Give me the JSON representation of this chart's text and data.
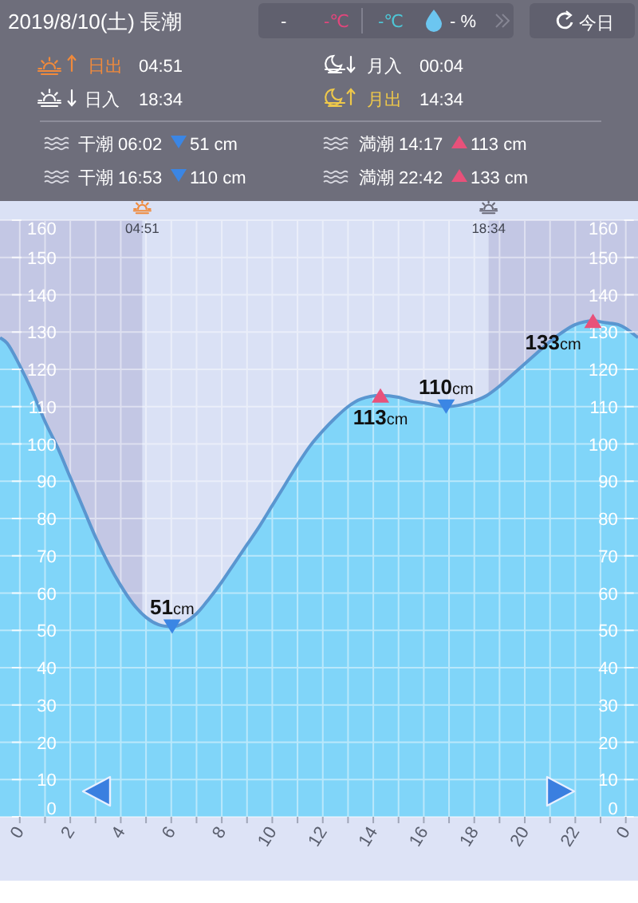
{
  "chart_data": [
    {
      "type": "other",
      "title": "2019/8/10(土) 長潮",
      "annotations": [
        "-",
        "-℃",
        "-℃",
        "- %",
        "今日",
        "日出",
        "04:51",
        "月入",
        "00:04",
        "日入",
        "18:34",
        "月出",
        "14:34",
        "干潮 06:02",
        "51 cm",
        "満潮 14:17",
        "113 cm",
        "干潮 16:53",
        "110 cm",
        "満潮 22:42",
        "133 cm"
      ]
    },
    {
      "type": "area",
      "x": [
        "2019-08-09T23:13",
        "2019-08-09T23:30",
        "2019-08-10T00:00",
        "2019-08-10T00:30",
        "2019-08-10T01:00",
        "2019-08-10T01:30",
        "2019-08-10T02:00",
        "2019-08-10T02:30",
        "2019-08-10T03:00",
        "2019-08-10T03:30",
        "2019-08-10T04:00",
        "2019-08-10T04:30",
        "2019-08-10T05:00",
        "2019-08-10T05:30",
        "2019-08-10T06:02",
        "2019-08-10T06:30",
        "2019-08-10T07:00",
        "2019-08-10T07:30",
        "2019-08-10T08:00",
        "2019-08-10T08:30",
        "2019-08-10T09:00",
        "2019-08-10T09:30",
        "2019-08-10T10:00",
        "2019-08-10T10:30",
        "2019-08-10T11:00",
        "2019-08-10T11:30",
        "2019-08-10T12:00",
        "2019-08-10T12:30",
        "2019-08-10T13:00",
        "2019-08-10T13:30",
        "2019-08-10T14:17",
        "2019-08-10T15:00",
        "2019-08-10T15:30",
        "2019-08-10T16:00",
        "2019-08-10T16:53",
        "2019-08-10T17:30",
        "2019-08-10T18:00",
        "2019-08-10T18:30",
        "2019-08-10T19:00",
        "2019-08-10T19:30",
        "2019-08-10T20:00",
        "2019-08-10T20:30",
        "2019-08-10T21:00",
        "2019-08-10T21:30",
        "2019-08-10T22:00",
        "2019-08-10T22:42",
        "2019-08-10T23:12",
        "2019-08-10T23:42",
        "2019-08-11T00:00",
        "2019-08-11T00:29"
      ],
      "series": [
        {
          "type": "area",
          "color": "#80d5f9",
          "values": [
            128.5,
            127,
            121,
            114,
            106,
            99,
            91,
            83,
            75,
            68,
            62,
            57,
            53.5,
            51.5,
            51,
            52,
            54.5,
            58.5,
            63,
            68,
            73,
            78,
            83.5,
            89,
            94.5,
            99.5,
            103.5,
            107,
            110,
            112,
            113,
            112.5,
            111.5,
            111,
            110,
            110.5,
            111.5,
            113,
            115.5,
            118.5,
            121.5,
            124.5,
            127.5,
            130,
            132,
            133,
            132.5,
            132,
            131,
            128.5
          ]
        },
        {
          "type": "scatter",
          "marker": "triangle",
          "color": "#3b86e4",
          "x": [
            "2019-08-10T06:02",
            "2019-08-10T16:53"
          ],
          "values": [
            51,
            110
          ],
          "value_labels": [
            "51cm",
            "110cm"
          ]
        },
        {
          "type": "scatter",
          "marker": "triangle",
          "color": "#e8517a",
          "x": [
            "2019-08-10T14:17",
            "2019-08-10T22:42"
          ],
          "values": [
            113,
            133
          ],
          "value_labels": [
            "113cm",
            "133cm"
          ]
        }
      ],
      "xlim": [
        "2019-08-09T23:13",
        "2019-08-11T00:29"
      ],
      "xticks": [
        {
          "value": "2019-08-10T00:00",
          "label": "0"
        },
        {
          "value": "2019-08-10T01:00",
          "label": null
        },
        {
          "value": "2019-08-10T02:00",
          "label": "2"
        },
        {
          "value": "2019-08-10T03:00",
          "label": null
        },
        {
          "value": "2019-08-10T04:00",
          "label": "4"
        },
        {
          "value": "2019-08-10T05:00",
          "label": null
        },
        {
          "value": "2019-08-10T06:00",
          "label": "6"
        },
        {
          "value": "2019-08-10T07:00",
          "label": null
        },
        {
          "value": "2019-08-10T08:00",
          "label": "8"
        },
        {
          "value": "2019-08-10T09:00",
          "label": null
        },
        {
          "value": "2019-08-10T10:00",
          "label": "10"
        },
        {
          "value": "2019-08-10T11:00",
          "label": null
        },
        {
          "value": "2019-08-10T12:00",
          "label": "12"
        },
        {
          "value": "2019-08-10T13:00",
          "label": null
        },
        {
          "value": "2019-08-10T14:00",
          "label": "14"
        },
        {
          "value": "2019-08-10T15:00",
          "label": null
        },
        {
          "value": "2019-08-10T16:00",
          "label": "16"
        },
        {
          "value": "2019-08-10T17:00",
          "label": null
        },
        {
          "value": "2019-08-10T18:00",
          "label": "18"
        },
        {
          "value": "2019-08-10T19:00",
          "label": null
        },
        {
          "value": "2019-08-10T20:00",
          "label": "20"
        },
        {
          "value": "2019-08-10T21:00",
          "label": null
        },
        {
          "value": "2019-08-10T22:00",
          "label": "22"
        },
        {
          "value": "2019-08-10T23:00",
          "label": null
        },
        {
          "value": "2019-08-11T00:00",
          "label": "0"
        }
      ],
      "ylim": [
        0,
        160
      ],
      "yticks": [
        0,
        10,
        20,
        30,
        40,
        50,
        60,
        70,
        80,
        90,
        100,
        110,
        120,
        130,
        140,
        150,
        160
      ],
      "y2lim": [
        0,
        160
      ],
      "y2ticks": [
        0,
        10,
        20,
        30,
        40,
        50,
        60,
        70,
        80,
        90,
        100,
        110,
        120,
        130,
        140,
        150,
        160
      ],
      "grid": true,
      "bands": [
        {
          "axis": "x",
          "from": "2019-08-09T23:13",
          "to": "2019-08-10T04:51",
          "label": "04:51",
          "color": "#6a5fa0"
        },
        {
          "axis": "x",
          "from": "2019-08-10T18:34",
          "to": "2019-08-11T00:29",
          "label": "18:34",
          "color": "#6a5fa0"
        }
      ]
    }
  ]
}
